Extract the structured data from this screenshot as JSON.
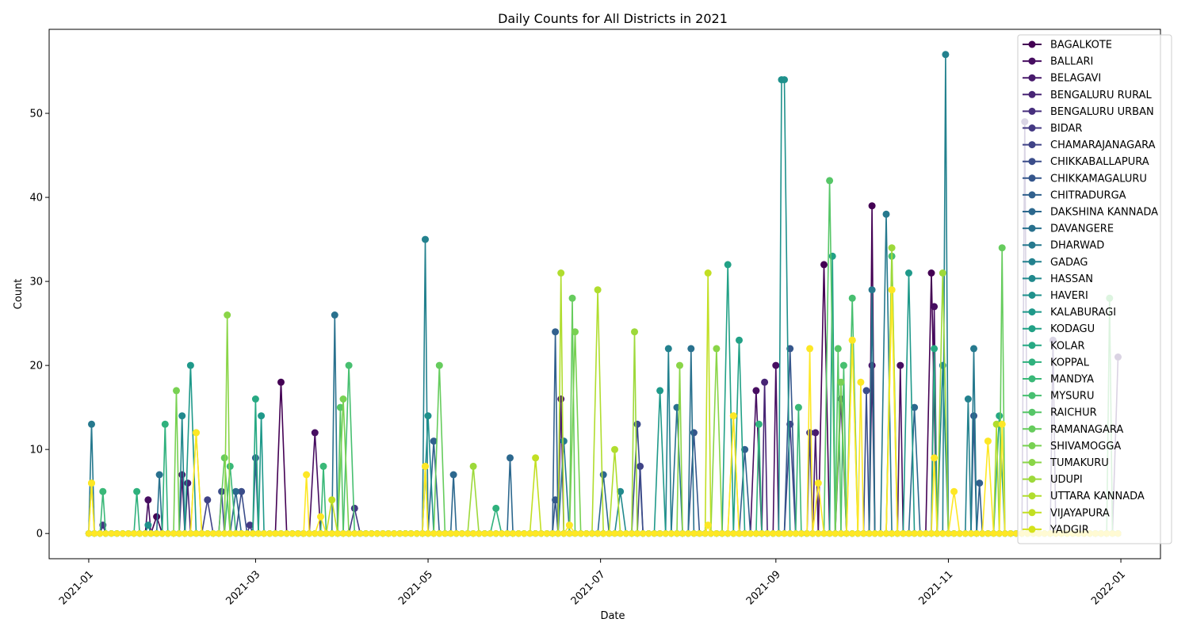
{
  "chart_data": {
    "type": "line",
    "title": "Daily Counts for All Districts in 2021",
    "xlabel": "Date",
    "ylabel": "Count",
    "x_range": [
      "2020-12-18",
      "2022-01-15"
    ],
    "ylim": [
      -3,
      60
    ],
    "x_ticks": [
      "2021-01",
      "2021-03",
      "2021-05",
      "2021-07",
      "2021-09",
      "2021-11",
      "2022-01"
    ],
    "x_tick_dates": [
      "2021-01-01",
      "2021-03-01",
      "2021-05-01",
      "2021-07-01",
      "2021-09-01",
      "2021-11-01",
      "2022-01-01"
    ],
    "y_ticks": [
      0,
      10,
      20,
      30,
      40,
      50
    ],
    "grid": false,
    "legend_position": "top-right",
    "markers": "circle",
    "colormap": "viridis",
    "series": [
      {
        "name": "BAGALKOTE",
        "color": "#440154",
        "points": [
          [
            "2021-01-25",
            2
          ],
          [
            "2021-03-10",
            18
          ],
          [
            "2021-09-18",
            32
          ],
          [
            "2021-10-05",
            39
          ],
          [
            "2021-10-26",
            31
          ]
        ]
      },
      {
        "name": "BALLARI",
        "color": "#470e61",
        "points": [
          [
            "2021-01-22",
            4
          ],
          [
            "2021-03-22",
            12
          ],
          [
            "2021-08-25",
            17
          ],
          [
            "2021-09-01",
            20
          ],
          [
            "2021-10-27",
            27
          ],
          [
            "2021-10-15",
            20
          ]
        ]
      },
      {
        "name": "BELAGAVI",
        "color": "#481a6c",
        "points": [
          [
            "2021-02-03",
            7
          ],
          [
            "2021-06-17",
            16
          ],
          [
            "2021-09-15",
            12
          ],
          [
            "2021-10-05",
            20
          ]
        ]
      },
      {
        "name": "BENGALURU RURAL",
        "color": "#482575",
        "points": [
          [
            "2021-02-05",
            6
          ],
          [
            "2021-08-28",
            18
          ],
          [
            "2021-09-24",
            16
          ],
          [
            "2021-12-31",
            21
          ]
        ]
      },
      {
        "name": "BENGALURU URBAN",
        "color": "#472f7d",
        "points": [
          [
            "2021-11-28",
            49
          ],
          [
            "2021-12-08",
            23
          ]
        ]
      },
      {
        "name": "BIDAR",
        "color": "#443983",
        "points": [
          [
            "2021-01-06",
            1
          ],
          [
            "2021-02-27",
            1
          ],
          [
            "2021-04-05",
            3
          ],
          [
            "2021-09-13",
            12
          ]
        ]
      },
      {
        "name": "CHAMARAJANAGARA",
        "color": "#404387",
        "points": [
          [
            "2021-02-12",
            4
          ],
          [
            "2021-07-15",
            8
          ],
          [
            "2021-09-06",
            13
          ]
        ]
      },
      {
        "name": "CHIKKABALLAPURA",
        "color": "#3b4d8a",
        "points": [
          [
            "2021-02-17",
            5
          ],
          [
            "2021-02-24",
            5
          ],
          [
            "2021-07-14",
            13
          ],
          [
            "2021-10-03",
            17
          ]
        ]
      },
      {
        "name": "CHIKKAMAGALURU",
        "color": "#35568c",
        "points": [
          [
            "2021-06-15",
            4
          ],
          [
            "2021-08-03",
            12
          ],
          [
            "2021-09-06",
            22
          ],
          [
            "2021-11-10",
            14
          ]
        ]
      },
      {
        "name": "CHITRADURGA",
        "color": "#31608d",
        "points": [
          [
            "2021-03-01",
            9
          ],
          [
            "2021-05-03",
            11
          ],
          [
            "2021-06-15",
            24
          ],
          [
            "2021-08-21",
            10
          ],
          [
            "2021-11-12",
            6
          ]
        ]
      },
      {
        "name": "DAKSHINA KANNADA",
        "color": "#2c688e",
        "points": [
          [
            "2021-02-22",
            5
          ],
          [
            "2021-05-10",
            7
          ],
          [
            "2021-05-30",
            9
          ],
          [
            "2021-07-02",
            7
          ],
          [
            "2021-10-20",
            15
          ]
        ]
      },
      {
        "name": "DAVANGERE",
        "color": "#29718e",
        "points": [
          [
            "2021-01-26",
            7
          ],
          [
            "2021-03-29",
            26
          ],
          [
            "2021-07-28",
            15
          ],
          [
            "2021-08-02",
            22
          ]
        ]
      },
      {
        "name": "DHARWAD",
        "color": "#26798e",
        "points": [
          [
            "2021-01-02",
            13
          ],
          [
            "2021-06-18",
            11
          ],
          [
            "2021-10-05",
            29
          ],
          [
            "2021-10-10",
            38
          ],
          [
            "2021-11-10",
            22
          ]
        ]
      },
      {
        "name": "GADAG",
        "color": "#23818e",
        "points": [
          [
            "2021-04-30",
            35
          ],
          [
            "2021-07-25",
            22
          ],
          [
            "2021-10-31",
            57
          ],
          [
            "2021-11-08",
            16
          ]
        ]
      },
      {
        "name": "HASSAN",
        "color": "#21898d",
        "points": [
          [
            "2021-02-03",
            14
          ],
          [
            "2021-07-08",
            5
          ],
          [
            "2021-10-30",
            20
          ]
        ]
      },
      {
        "name": "HAVERI",
        "color": "#1f918c",
        "points": [
          [
            "2021-01-22",
            1
          ],
          [
            "2021-05-01",
            14
          ],
          [
            "2021-09-03",
            54
          ],
          [
            "2021-09-04",
            54
          ]
        ]
      },
      {
        "name": "KALABURAGI",
        "color": "#1f998a",
        "points": [
          [
            "2021-02-06",
            20
          ],
          [
            "2021-03-03",
            14
          ],
          [
            "2021-07-22",
            17
          ],
          [
            "2021-10-18",
            31
          ]
        ]
      },
      {
        "name": "KODAGU",
        "color": "#22a186",
        "points": [
          [
            "2021-08-15",
            32
          ],
          [
            "2021-08-19",
            23
          ],
          [
            "2021-09-21",
            33
          ]
        ]
      },
      {
        "name": "KOLAR",
        "color": "#27a983",
        "points": [
          [
            "2021-03-01",
            16
          ],
          [
            "2021-10-27",
            22
          ],
          [
            "2021-11-19",
            14
          ]
        ]
      },
      {
        "name": "KOPPAL",
        "color": "#2fb17d",
        "points": [
          [
            "2021-01-18",
            5
          ],
          [
            "2021-01-28",
            13
          ],
          [
            "2021-05-25",
            3
          ],
          [
            "2021-08-26",
            13
          ]
        ]
      },
      {
        "name": "MANDYA",
        "color": "#3ab878",
        "points": [
          [
            "2021-01-06",
            5
          ],
          [
            "2021-02-20",
            8
          ],
          [
            "2021-03-25",
            8
          ],
          [
            "2021-09-09",
            15
          ]
        ]
      },
      {
        "name": "MYSURU",
        "color": "#47bf70",
        "points": [
          [
            "2021-04-03",
            20
          ],
          [
            "2021-09-25",
            20
          ],
          [
            "2021-09-28",
            28
          ],
          [
            "2021-10-12",
            33
          ]
        ]
      },
      {
        "name": "RAICHUR",
        "color": "#56c667",
        "points": [
          [
            "2021-03-31",
            15
          ],
          [
            "2021-09-20",
            42
          ],
          [
            "2021-09-23",
            22
          ],
          [
            "2021-12-28",
            28
          ]
        ]
      },
      {
        "name": "RAMANAGARA",
        "color": "#66cc5d",
        "points": [
          [
            "2021-02-18",
            9
          ],
          [
            "2021-05-05",
            20
          ],
          [
            "2021-06-21",
            28
          ],
          [
            "2021-11-20",
            34
          ]
        ]
      },
      {
        "name": "SHIVAMOGGA",
        "color": "#78d152",
        "points": [
          [
            "2021-02-01",
            17
          ],
          [
            "2021-04-01",
            16
          ],
          [
            "2021-06-22",
            24
          ],
          [
            "2021-09-24",
            18
          ]
        ]
      },
      {
        "name": "TUMAKURU",
        "color": "#8ad547",
        "points": [
          [
            "2021-02-19",
            26
          ],
          [
            "2021-07-29",
            20
          ],
          [
            "2021-08-11",
            22
          ]
        ]
      },
      {
        "name": "UDUPI",
        "color": "#9dd93a",
        "points": [
          [
            "2021-05-17",
            8
          ],
          [
            "2021-07-13",
            24
          ],
          [
            "2021-10-12",
            34
          ],
          [
            "2021-10-30",
            31
          ]
        ]
      },
      {
        "name": "UTTARA KANNADA",
        "color": "#b0dd2e",
        "points": [
          [
            "2021-06-17",
            31
          ],
          [
            "2021-06-30",
            29
          ],
          [
            "2021-07-06",
            10
          ],
          [
            "2021-11-18",
            13
          ]
        ]
      },
      {
        "name": "VIJAYAPURA",
        "color": "#c2df23",
        "points": [
          [
            "2021-02-08",
            12
          ],
          [
            "2021-03-28",
            4
          ],
          [
            "2021-06-08",
            9
          ],
          [
            "2021-08-08",
            31
          ]
        ]
      },
      {
        "name": "YADGIR",
        "color": "#d4e21a",
        "points": [
          [
            "2021-01-02",
            6
          ],
          [
            "2021-04-30",
            8
          ],
          [
            "2021-08-17",
            14
          ],
          [
            "2021-10-12",
            29
          ],
          [
            "2021-09-28",
            23
          ]
        ]
      },
      {
        "name": "",
        "color": "#fde725",
        "points": [
          [
            "2021-01-02",
            6
          ],
          [
            "2021-02-08",
            12
          ],
          [
            "2021-03-19",
            7
          ],
          [
            "2021-03-24",
            2
          ],
          [
            "2021-04-30",
            8
          ],
          [
            "2021-06-20",
            1
          ],
          [
            "2021-08-08",
            1
          ],
          [
            "2021-08-17",
            14
          ],
          [
            "2021-09-13",
            22
          ],
          [
            "2021-09-16",
            6
          ],
          [
            "2021-09-28",
            23
          ],
          [
            "2021-10-01",
            18
          ],
          [
            "2021-10-12",
            29
          ],
          [
            "2021-10-27",
            9
          ],
          [
            "2021-11-03",
            5
          ],
          [
            "2021-11-15",
            11
          ],
          [
            "2021-11-20",
            13
          ]
        ]
      }
    ]
  }
}
